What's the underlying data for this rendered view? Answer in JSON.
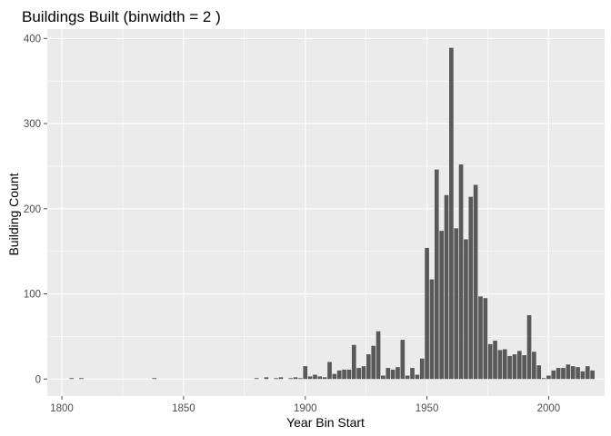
{
  "colors": {
    "panel": "#ebebeb",
    "grid_major": "#ffffff",
    "bar": "#595959",
    "tick": "#4d4d4d"
  },
  "chart_data": {
    "type": "bar",
    "title": "Buildings Built (binwidth = 2 )",
    "xlabel": "Year Bin Start",
    "ylabel": "Building Count",
    "binwidth": 2,
    "xlim": [
      1794,
      2023
    ],
    "ylim": [
      -20,
      411
    ],
    "x_ticks": [
      1800,
      1850,
      1900,
      1950,
      2000
    ],
    "y_ticks": [
      0,
      100,
      200,
      300,
      400
    ],
    "x_tick_labels": [
      "1800",
      "1850",
      "1900",
      "1950",
      "2000"
    ],
    "y_tick_labels": [
      "0",
      "100",
      "200",
      "300",
      "400"
    ],
    "bins": [
      {
        "x": 1804,
        "y": 1
      },
      {
        "x": 1808,
        "y": 1
      },
      {
        "x": 1838,
        "y": 1
      },
      {
        "x": 1880,
        "y": 1
      },
      {
        "x": 1884,
        "y": 2
      },
      {
        "x": 1888,
        "y": 1
      },
      {
        "x": 1890,
        "y": 2
      },
      {
        "x": 1894,
        "y": 1
      },
      {
        "x": 1896,
        "y": 2
      },
      {
        "x": 1898,
        "y": 1
      },
      {
        "x": 1900,
        "y": 15
      },
      {
        "x": 1902,
        "y": 3
      },
      {
        "x": 1904,
        "y": 5
      },
      {
        "x": 1906,
        "y": 3
      },
      {
        "x": 1908,
        "y": 2
      },
      {
        "x": 1910,
        "y": 20
      },
      {
        "x": 1912,
        "y": 6
      },
      {
        "x": 1914,
        "y": 10
      },
      {
        "x": 1916,
        "y": 11
      },
      {
        "x": 1918,
        "y": 11
      },
      {
        "x": 1920,
        "y": 40
      },
      {
        "x": 1922,
        "y": 13
      },
      {
        "x": 1924,
        "y": 15
      },
      {
        "x": 1926,
        "y": 29
      },
      {
        "x": 1928,
        "y": 39
      },
      {
        "x": 1930,
        "y": 56
      },
      {
        "x": 1932,
        "y": 4
      },
      {
        "x": 1934,
        "y": 13
      },
      {
        "x": 1936,
        "y": 11
      },
      {
        "x": 1938,
        "y": 14
      },
      {
        "x": 1940,
        "y": 46
      },
      {
        "x": 1942,
        "y": 4
      },
      {
        "x": 1944,
        "y": 13
      },
      {
        "x": 1946,
        "y": 5
      },
      {
        "x": 1948,
        "y": 24
      },
      {
        "x": 1950,
        "y": 154
      },
      {
        "x": 1952,
        "y": 117
      },
      {
        "x": 1954,
        "y": 246
      },
      {
        "x": 1956,
        "y": 174
      },
      {
        "x": 1958,
        "y": 216
      },
      {
        "x": 1960,
        "y": 389
      },
      {
        "x": 1962,
        "y": 177
      },
      {
        "x": 1964,
        "y": 252
      },
      {
        "x": 1966,
        "y": 164
      },
      {
        "x": 1968,
        "y": 214
      },
      {
        "x": 1970,
        "y": 228
      },
      {
        "x": 1972,
        "y": 97
      },
      {
        "x": 1974,
        "y": 95
      },
      {
        "x": 1976,
        "y": 41
      },
      {
        "x": 1978,
        "y": 45
      },
      {
        "x": 1980,
        "y": 34
      },
      {
        "x": 1982,
        "y": 35
      },
      {
        "x": 1984,
        "y": 27
      },
      {
        "x": 1986,
        "y": 29
      },
      {
        "x": 1988,
        "y": 33
      },
      {
        "x": 1990,
        "y": 28
      },
      {
        "x": 1992,
        "y": 75
      },
      {
        "x": 1994,
        "y": 32
      },
      {
        "x": 1996,
        "y": 16
      },
      {
        "x": 1998,
        "y": 1
      },
      {
        "x": 2000,
        "y": 4
      },
      {
        "x": 2002,
        "y": 10
      },
      {
        "x": 2004,
        "y": 13
      },
      {
        "x": 2006,
        "y": 13
      },
      {
        "x": 2008,
        "y": 17
      },
      {
        "x": 2010,
        "y": 15
      },
      {
        "x": 2012,
        "y": 14
      },
      {
        "x": 2014,
        "y": 9
      },
      {
        "x": 2016,
        "y": 15
      },
      {
        "x": 2018,
        "y": 10
      }
    ]
  }
}
